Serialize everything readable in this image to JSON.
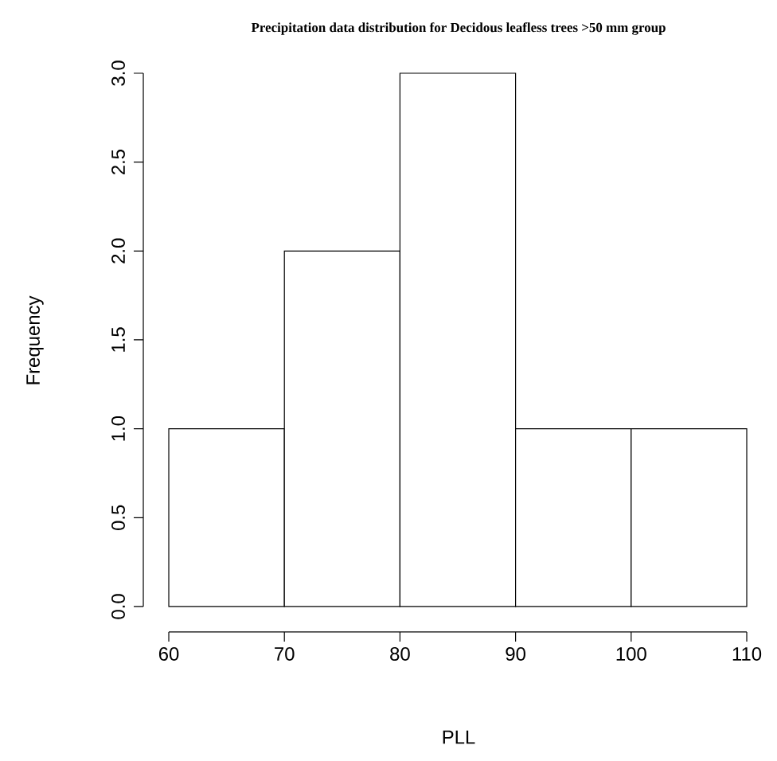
{
  "chart_data": {
    "type": "histogram",
    "title": "Precipitation data distribution for Decidous leafless trees >50 mm group",
    "xlabel": "PLL",
    "ylabel": "Frequency",
    "bins": [
      60,
      70,
      80,
      90,
      100,
      110
    ],
    "values": [
      1,
      2,
      3,
      1,
      1
    ],
    "xlim": [
      60,
      110
    ],
    "ylim": [
      0,
      3
    ],
    "xticks": [
      60,
      70,
      80,
      90,
      100,
      110
    ],
    "yticks": [
      {
        "value": 0,
        "label": "0.0"
      },
      0.5,
      {
        "value": 1,
        "label": "1.0"
      },
      1.5,
      {
        "value": 2,
        "label": "2.0"
      },
      2.5,
      {
        "value": 3,
        "label": "3.0"
      }
    ]
  }
}
